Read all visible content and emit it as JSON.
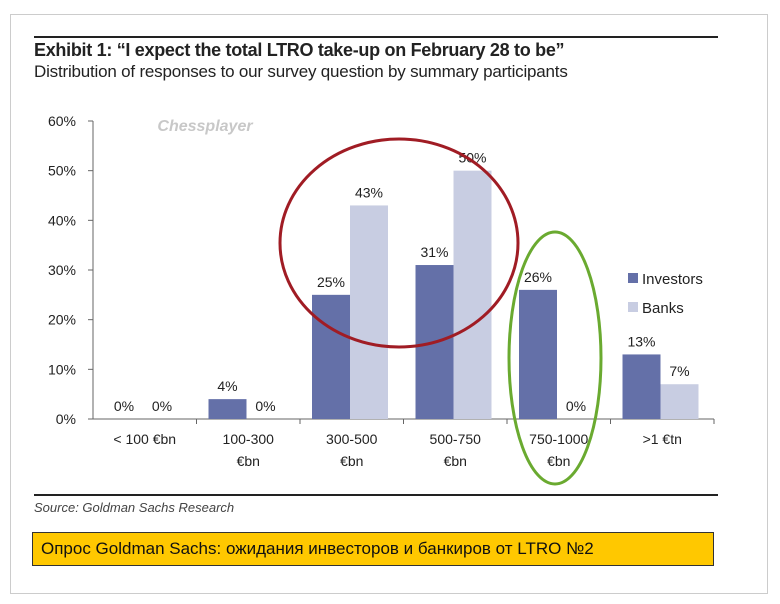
{
  "chart_data": {
    "type": "bar",
    "title": "Exhibit 1: “I expect the total LTRO take-up on February 28 to be”",
    "subtitle": "Distribution of responses to our survey question by summary participants",
    "categories": [
      [
        "< 100 €bn",
        ""
      ],
      [
        "100-300",
        "€bn"
      ],
      [
        "300-500",
        "€bn"
      ],
      [
        "500-750",
        "€bn"
      ],
      [
        "750-1000",
        "€bn"
      ],
      [
        ">1 €tn",
        ""
      ]
    ],
    "series": [
      {
        "name": "Investors",
        "color": "#6470a8",
        "values": [
          0,
          4,
          25,
          31,
          26,
          13
        ]
      },
      {
        "name": "Banks",
        "color": "#c8cde2",
        "values": [
          0,
          0,
          43,
          50,
          0,
          7
        ]
      }
    ],
    "ylim": [
      0,
      60
    ],
    "yticks": [
      "0%",
      "10%",
      "20%",
      "30%",
      "40%",
      "50%",
      "60%"
    ],
    "legend": "right",
    "watermark": "Chessplayer",
    "source": "Source: Goldman Sachs Research",
    "annotations": {
      "red_circle_color": "#a01c24",
      "green_ellipse_color": "#6aaa30"
    }
  },
  "caption": "Опрос Goldman Sachs: ожидания инвесторов и банкиров от LTRO №2"
}
